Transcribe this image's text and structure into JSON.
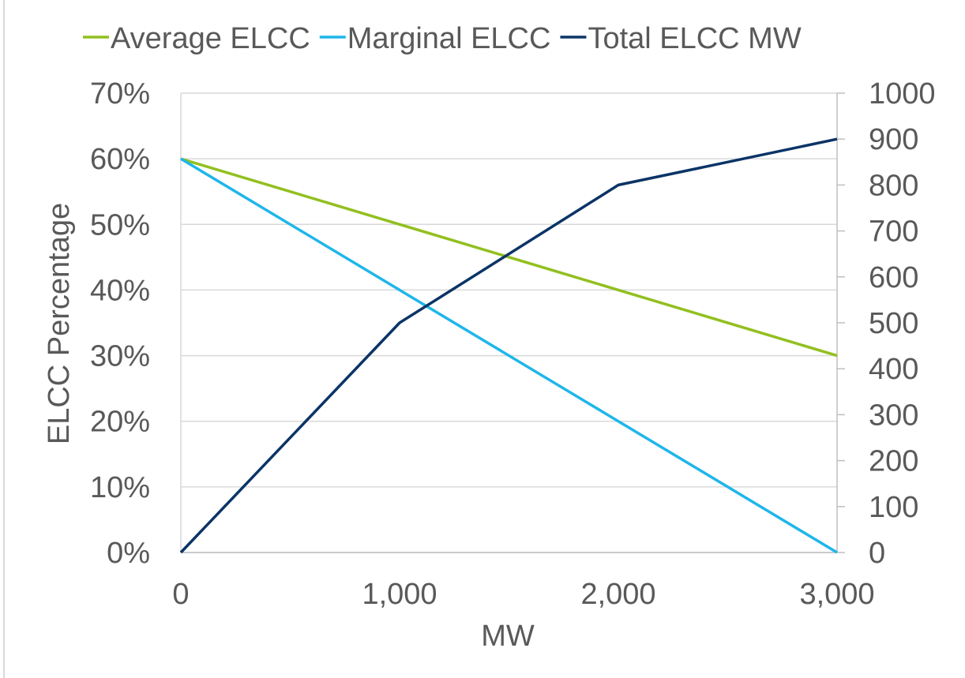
{
  "chart_data": {
    "type": "line",
    "x": [
      0,
      1000,
      2000,
      3000
    ],
    "x_ticks": [
      "0",
      "1,000",
      "2,000",
      "3,000"
    ],
    "xlim": [
      0,
      3000
    ],
    "xlabel": "MW",
    "ylabel": "ELCC Percentage",
    "y_left_lim": [
      0,
      70
    ],
    "y_left_ticks": [
      "0%",
      "10%",
      "20%",
      "30%",
      "40%",
      "50%",
      "60%",
      "70%"
    ],
    "y_right_lim": [
      0,
      1000
    ],
    "y_right_ticks": [
      "0",
      "100",
      "200",
      "300",
      "400",
      "500",
      "600",
      "700",
      "800",
      "900",
      "1000"
    ],
    "grid": true,
    "legend_position": "top",
    "series": [
      {
        "name": "Average ELCC",
        "axis": "left",
        "color": "#92c01f",
        "values": [
          60,
          50,
          40,
          30
        ]
      },
      {
        "name": "Marginal ELCC",
        "axis": "left",
        "color": "#1fb6ea",
        "values": [
          60,
          40,
          20,
          0
        ]
      },
      {
        "name": "Total ELCC MW",
        "axis": "right",
        "color": "#0b3466",
        "values": [
          0,
          500,
          800,
          900
        ]
      }
    ]
  }
}
